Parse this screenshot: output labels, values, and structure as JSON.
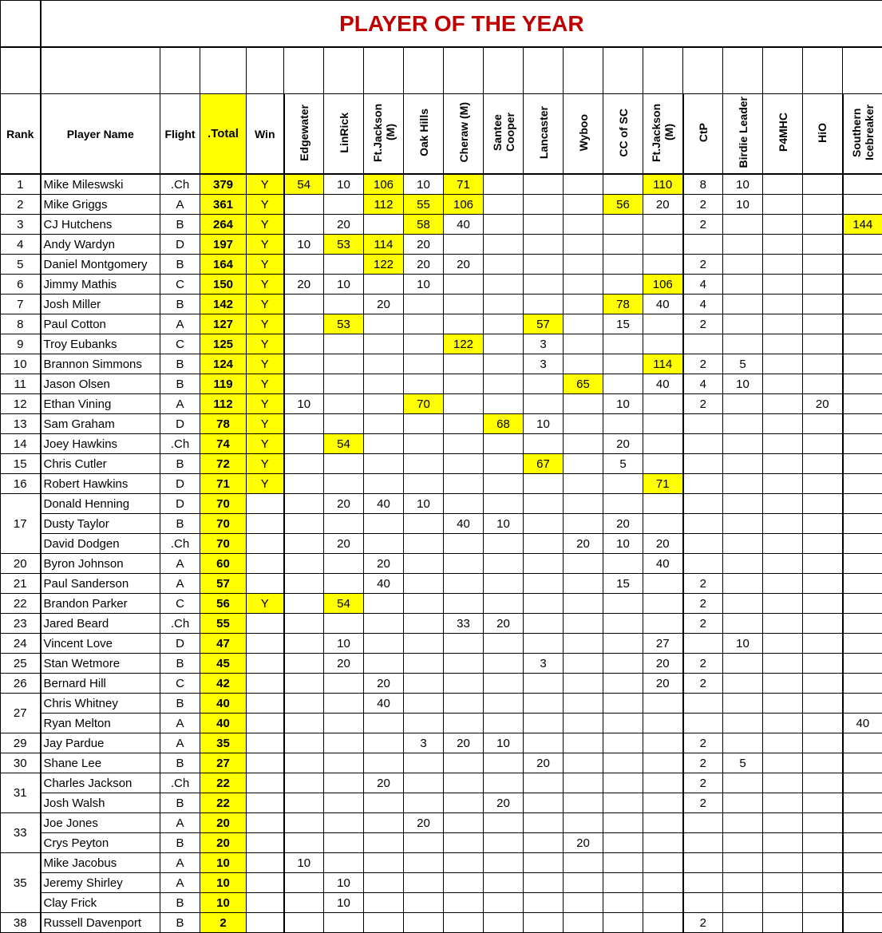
{
  "title": "PLAYER OF THE YEAR",
  "highlight_color": "#ffff00",
  "title_color": "#c00000",
  "headers": {
    "rank": "Rank",
    "player": "Player Name",
    "flight": "Flight",
    "total": ".Total",
    "win": "Win",
    "events": [
      "Edgewater",
      "LinRick",
      "Ft.Jackson (M)",
      "Oak Hills",
      "Cheraw (M)",
      "Santee Cooper",
      "Lancaster",
      "Wyboo",
      "CC of SC",
      "Ft.Jackson (M)",
      "CtP",
      "Birdie Leader",
      "P4MHC",
      "HiO",
      "Southern Icebreaker"
    ]
  },
  "rows": [
    {
      "rank": "1",
      "name": "Mike Mileswski",
      "flight": ".Ch",
      "total": "379",
      "win": "Y",
      "scores": [
        "54",
        "10",
        "106",
        "10",
        "71",
        "",
        "",
        "",
        "",
        "110",
        "8",
        "10",
        "",
        "",
        ""
      ],
      "hl": [
        0,
        2,
        4,
        9
      ]
    },
    {
      "rank": "2",
      "name": "Mike Griggs",
      "flight": "A",
      "total": "361",
      "win": "Y",
      "scores": [
        "",
        "",
        "112",
        "55",
        "106",
        "",
        "",
        "",
        "56",
        "20",
        "2",
        "10",
        "",
        "",
        ""
      ],
      "hl": [
        2,
        3,
        4,
        8
      ]
    },
    {
      "rank": "3",
      "name": "CJ Hutchens",
      "flight": "B",
      "total": "264",
      "win": "Y",
      "scores": [
        "",
        "20",
        "",
        "58",
        "40",
        "",
        "",
        "",
        "",
        "",
        "2",
        "",
        "",
        "",
        "144"
      ],
      "hl": [
        3,
        14
      ]
    },
    {
      "rank": "4",
      "name": "Andy Wardyn",
      "flight": "D",
      "total": "197",
      "win": "Y",
      "scores": [
        "10",
        "53",
        "114",
        "20",
        "",
        "",
        "",
        "",
        "",
        "",
        "",
        "",
        "",
        "",
        ""
      ],
      "hl": [
        1,
        2
      ]
    },
    {
      "rank": "5",
      "name": "Daniel Montgomery",
      "flight": "B",
      "total": "164",
      "win": "Y",
      "scores": [
        "",
        "",
        "122",
        "20",
        "20",
        "",
        "",
        "",
        "",
        "",
        "2",
        "",
        "",
        "",
        ""
      ],
      "hl": [
        2
      ]
    },
    {
      "rank": "6",
      "name": "Jimmy Mathis",
      "flight": "C",
      "total": "150",
      "win": "Y",
      "scores": [
        "20",
        "10",
        "",
        "10",
        "",
        "",
        "",
        "",
        "",
        "106",
        "4",
        "",
        "",
        "",
        ""
      ],
      "hl": [
        9
      ]
    },
    {
      "rank": "7",
      "name": "Josh Miller",
      "flight": "B",
      "total": "142",
      "win": "Y",
      "scores": [
        "",
        "",
        "20",
        "",
        "",
        "",
        "",
        "",
        "78",
        "40",
        "4",
        "",
        "",
        "",
        ""
      ],
      "hl": [
        8
      ]
    },
    {
      "rank": "8",
      "name": "Paul Cotton",
      "flight": "A",
      "total": "127",
      "win": "Y",
      "scores": [
        "",
        "53",
        "",
        "",
        "",
        "",
        "57",
        "",
        "15",
        "",
        "2",
        "",
        "",
        "",
        ""
      ],
      "hl": [
        1,
        6
      ]
    },
    {
      "rank": "9",
      "name": "Troy Eubanks",
      "flight": "C",
      "total": "125",
      "win": "Y",
      "scores": [
        "",
        "",
        "",
        "",
        "122",
        "",
        "3",
        "",
        "",
        "",
        "",
        "",
        "",
        "",
        ""
      ],
      "hl": [
        4
      ]
    },
    {
      "rank": "10",
      "name": "Brannon Simmons",
      "flight": "B",
      "total": "124",
      "win": "Y",
      "scores": [
        "",
        "",
        "",
        "",
        "",
        "",
        "3",
        "",
        "",
        "114",
        "2",
        "5",
        "",
        "",
        ""
      ],
      "hl": [
        9
      ]
    },
    {
      "rank": "11",
      "name": "Jason Olsen",
      "flight": "B",
      "total": "119",
      "win": "Y",
      "scores": [
        "",
        "",
        "",
        "",
        "",
        "",
        "",
        "65",
        "",
        "40",
        "4",
        "10",
        "",
        "",
        ""
      ],
      "hl": [
        7
      ]
    },
    {
      "rank": "12",
      "name": "Ethan Vining",
      "flight": "A",
      "total": "112",
      "win": "Y",
      "scores": [
        "10",
        "",
        "",
        "70",
        "",
        "",
        "",
        "",
        "10",
        "",
        "2",
        "",
        "",
        "20",
        ""
      ],
      "hl": [
        3
      ]
    },
    {
      "rank": "13",
      "name": "Sam Graham",
      "flight": "D",
      "total": "78",
      "win": "Y",
      "scores": [
        "",
        "",
        "",
        "",
        "",
        "68",
        "10",
        "",
        "",
        "",
        "",
        "",
        "",
        "",
        ""
      ],
      "hl": [
        5
      ]
    },
    {
      "rank": "14",
      "name": "Joey Hawkins",
      "flight": ".Ch",
      "total": "74",
      "win": "Y",
      "scores": [
        "",
        "54",
        "",
        "",
        "",
        "",
        "",
        "",
        "20",
        "",
        "",
        "",
        "",
        "",
        ""
      ],
      "hl": [
        1
      ]
    },
    {
      "rank": "15",
      "name": "Chris Cutler",
      "flight": "B",
      "total": "72",
      "win": "Y",
      "scores": [
        "",
        "",
        "",
        "",
        "",
        "",
        "67",
        "",
        "5",
        "",
        "",
        "",
        "",
        "",
        ""
      ],
      "hl": [
        6
      ]
    },
    {
      "rank": "16",
      "name": "Robert Hawkins",
      "flight": "D",
      "total": "71",
      "win": "Y",
      "scores": [
        "",
        "",
        "",
        "",
        "",
        "",
        "",
        "",
        "",
        "71",
        "",
        "",
        "",
        "",
        ""
      ],
      "hl": [
        9
      ]
    },
    {
      "rank": "17",
      "name": "Donald Henning",
      "flight": "D",
      "total": "70",
      "win": "",
      "scores": [
        "",
        "20",
        "40",
        "10",
        "",
        "",
        "",
        "",
        "",
        "",
        "",
        "",
        "",
        "",
        ""
      ],
      "hl": []
    },
    {
      "rank": "",
      "name": "Dusty Taylor",
      "flight": "B",
      "total": "70",
      "win": "",
      "scores": [
        "",
        "",
        "",
        "",
        "40",
        "10",
        "",
        "",
        "20",
        "",
        "",
        "",
        "",
        "",
        ""
      ],
      "hl": []
    },
    {
      "rank": "",
      "name": "David Dodgen",
      "flight": ".Ch",
      "total": "70",
      "win": "",
      "scores": [
        "",
        "20",
        "",
        "",
        "",
        "",
        "",
        "20",
        "10",
        "20",
        "",
        "",
        "",
        "",
        ""
      ],
      "hl": []
    },
    {
      "rank": "20",
      "name": "Byron Johnson",
      "flight": "A",
      "total": "60",
      "win": "",
      "scores": [
        "",
        "",
        "20",
        "",
        "",
        "",
        "",
        "",
        "",
        "40",
        "",
        "",
        "",
        "",
        ""
      ],
      "hl": []
    },
    {
      "rank": "21",
      "name": "Paul Sanderson",
      "flight": "A",
      "total": "57",
      "win": "",
      "scores": [
        "",
        "",
        "40",
        "",
        "",
        "",
        "",
        "",
        "15",
        "",
        "2",
        "",
        "",
        "",
        ""
      ],
      "hl": []
    },
    {
      "rank": "22",
      "name": "Brandon Parker",
      "flight": "C",
      "total": "56",
      "win": "Y",
      "scores": [
        "",
        "54",
        "",
        "",
        "",
        "",
        "",
        "",
        "",
        "",
        "2",
        "",
        "",
        "",
        ""
      ],
      "hl": [
        1
      ]
    },
    {
      "rank": "23",
      "name": "Jared Beard",
      "flight": ".Ch",
      "total": "55",
      "win": "",
      "scores": [
        "",
        "",
        "",
        "",
        "33",
        "20",
        "",
        "",
        "",
        "",
        "2",
        "",
        "",
        "",
        ""
      ],
      "hl": []
    },
    {
      "rank": "24",
      "name": "Vincent Love",
      "flight": "D",
      "total": "47",
      "win": "",
      "scores": [
        "",
        "10",
        "",
        "",
        "",
        "",
        "",
        "",
        "",
        "27",
        "",
        "10",
        "",
        "",
        ""
      ],
      "hl": []
    },
    {
      "rank": "25",
      "name": "Stan Wetmore",
      "flight": "B",
      "total": "45",
      "win": "",
      "scores": [
        "",
        "20",
        "",
        "",
        "",
        "",
        "3",
        "",
        "",
        "20",
        "2",
        "",
        "",
        "",
        ""
      ],
      "hl": []
    },
    {
      "rank": "26",
      "name": "Bernard Hill",
      "flight": "C",
      "total": "42",
      "win": "",
      "scores": [
        "",
        "",
        "20",
        "",
        "",
        "",
        "",
        "",
        "",
        "20",
        "2",
        "",
        "",
        "",
        ""
      ],
      "hl": []
    },
    {
      "rank": "27",
      "name": "Chris Whitney",
      "flight": "B",
      "total": "40",
      "win": "",
      "scores": [
        "",
        "",
        "40",
        "",
        "",
        "",
        "",
        "",
        "",
        "",
        "",
        "",
        "",
        "",
        ""
      ],
      "hl": []
    },
    {
      "rank": "",
      "name": "Ryan Melton",
      "flight": "A",
      "total": "40",
      "win": "",
      "scores": [
        "",
        "",
        "",
        "",
        "",
        "",
        "",
        "",
        "",
        "",
        "",
        "",
        "",
        "",
        "40"
      ],
      "hl": []
    },
    {
      "rank": "29",
      "name": "Jay Pardue",
      "flight": "A",
      "total": "35",
      "win": "",
      "scores": [
        "",
        "",
        "",
        "3",
        "20",
        "10",
        "",
        "",
        "",
        "",
        "2",
        "",
        "",
        "",
        ""
      ],
      "hl": []
    },
    {
      "rank": "30",
      "name": "Shane Lee",
      "flight": "B",
      "total": "27",
      "win": "",
      "scores": [
        "",
        "",
        "",
        "",
        "",
        "",
        "20",
        "",
        "",
        "",
        "2",
        "5",
        "",
        "",
        ""
      ],
      "hl": []
    },
    {
      "rank": "31",
      "name": "Charles Jackson",
      "flight": ".Ch",
      "total": "22",
      "win": "",
      "scores": [
        "",
        "",
        "20",
        "",
        "",
        "",
        "",
        "",
        "",
        "",
        "2",
        "",
        "",
        "",
        ""
      ],
      "hl": []
    },
    {
      "rank": "",
      "name": "Josh Walsh",
      "flight": "B",
      "total": "22",
      "win": "",
      "scores": [
        "",
        "",
        "",
        "",
        "",
        "20",
        "",
        "",
        "",
        "",
        "2",
        "",
        "",
        "",
        ""
      ],
      "hl": []
    },
    {
      "rank": "33",
      "name": "Joe Jones",
      "flight": "A",
      "total": "20",
      "win": "",
      "scores": [
        "",
        "",
        "",
        "20",
        "",
        "",
        "",
        "",
        "",
        "",
        "",
        "",
        "",
        "",
        ""
      ],
      "hl": []
    },
    {
      "rank": "",
      "name": "Crys Peyton",
      "flight": "B",
      "total": "20",
      "win": "",
      "scores": [
        "",
        "",
        "",
        "",
        "",
        "",
        "",
        "20",
        "",
        "",
        "",
        "",
        "",
        "",
        ""
      ],
      "hl": []
    },
    {
      "rank": "35",
      "name": "Mike Jacobus",
      "flight": "A",
      "total": "10",
      "win": "",
      "scores": [
        "10",
        "",
        "",
        "",
        "",
        "",
        "",
        "",
        "",
        "",
        "",
        "",
        "",
        "",
        ""
      ],
      "hl": []
    },
    {
      "rank": "",
      "name": "Jeremy Shirley",
      "flight": "A",
      "total": "10",
      "win": "",
      "scores": [
        "",
        "10",
        "",
        "",
        "",
        "",
        "",
        "",
        "",
        "",
        "",
        "",
        "",
        "",
        ""
      ],
      "hl": []
    },
    {
      "rank": "",
      "name": "Clay Frick",
      "flight": "B",
      "total": "10",
      "win": "",
      "scores": [
        "",
        "10",
        "",
        "",
        "",
        "",
        "",
        "",
        "",
        "",
        "",
        "",
        "",
        "",
        ""
      ],
      "hl": []
    },
    {
      "rank": "38",
      "name": "Russell Davenport",
      "flight": "B",
      "total": "2",
      "win": "",
      "scores": [
        "",
        "",
        "",
        "",
        "",
        "",
        "",
        "",
        "",
        "",
        "2",
        "",
        "",
        "",
        ""
      ],
      "hl": []
    }
  ]
}
